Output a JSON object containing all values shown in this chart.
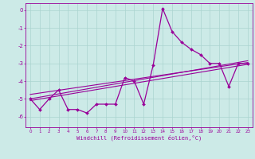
{
  "xlabel": "Windchill (Refroidissement éolien,°C)",
  "xlim": [
    -0.5,
    23.5
  ],
  "ylim": [
    -6.6,
    0.4
  ],
  "yticks": [
    0,
    -1,
    -2,
    -3,
    -4,
    -5,
    -6
  ],
  "xticks": [
    0,
    1,
    2,
    3,
    4,
    5,
    6,
    7,
    8,
    9,
    10,
    11,
    12,
    13,
    14,
    15,
    16,
    17,
    18,
    19,
    20,
    21,
    22,
    23
  ],
  "bg_color": "#cceae7",
  "line_color": "#990099",
  "grid_color": "#aad4d0",
  "main_x": [
    0,
    1,
    2,
    3,
    4,
    5,
    6,
    7,
    8,
    9,
    10,
    11,
    12,
    13,
    14,
    15,
    16,
    17,
    18,
    19,
    20,
    21,
    22,
    23
  ],
  "main_y": [
    -5.0,
    -5.6,
    -5.0,
    -4.5,
    -5.6,
    -5.6,
    -5.8,
    -5.3,
    -5.3,
    -5.3,
    -3.8,
    -4.0,
    -5.3,
    -3.1,
    0.1,
    -1.2,
    -1.8,
    -2.2,
    -2.5,
    -3.0,
    -3.0,
    -4.3,
    -3.0,
    -3.0
  ],
  "line2_x": [
    0,
    23
  ],
  "line2_y": [
    -5.0,
    -2.85
  ],
  "line3_x": [
    0,
    23
  ],
  "line3_y": [
    -5.1,
    -3.05
  ],
  "line4_x": [
    0,
    23
  ],
  "line4_y": [
    -4.75,
    -2.95
  ]
}
